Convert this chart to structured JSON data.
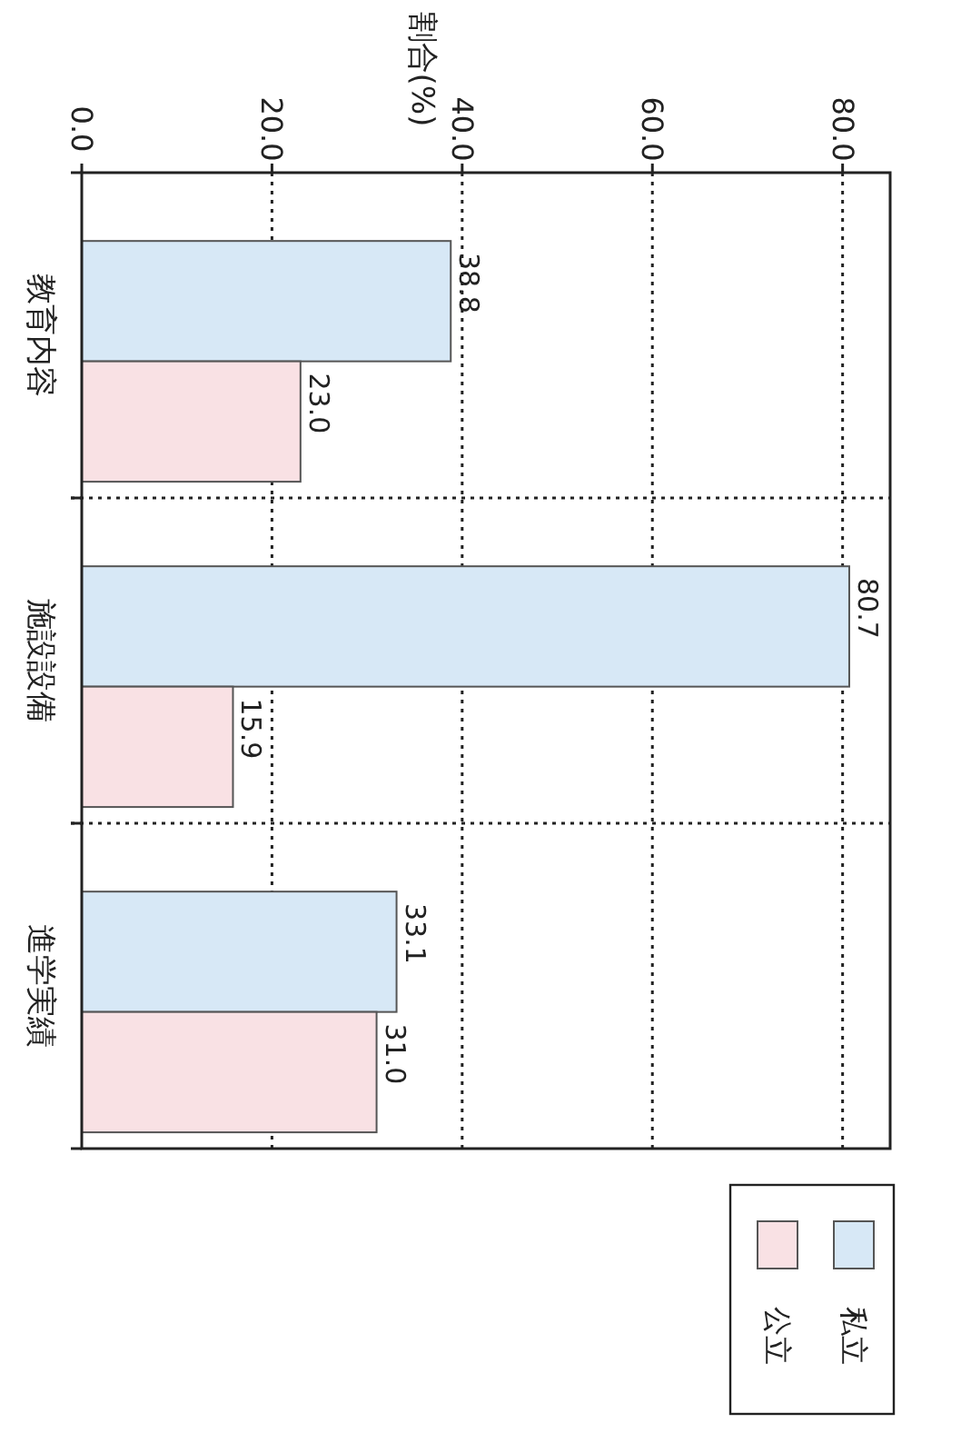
{
  "chart_data": {
    "type": "bar",
    "orientation": "horizontal",
    "ylabel": "割合(%)",
    "categories": [
      "教育内容",
      "施設設備",
      "進学実績"
    ],
    "series": [
      {
        "name": "私立",
        "color": "#d7e8f6",
        "values": [
          38.8,
          80.7,
          33.1
        ],
        "value_labels": [
          "38.8",
          "80.7",
          "33.1"
        ]
      },
      {
        "name": "公立",
        "color": "#f9e1e4",
        "values": [
          23.0,
          15.9,
          31.0
        ],
        "value_labels": [
          "23.0",
          "15.9",
          "31.0"
        ]
      }
    ],
    "xlim": [
      0,
      85
    ],
    "xticks": [
      {
        "value": 0,
        "label": "0.0"
      },
      {
        "value": 20,
        "label": "20.0"
      },
      {
        "value": 40,
        "label": "40.0"
      },
      {
        "value": 60,
        "label": "60.0"
      },
      {
        "value": 80,
        "label": "80.0"
      }
    ],
    "grid": true,
    "legend": "bottom right"
  }
}
